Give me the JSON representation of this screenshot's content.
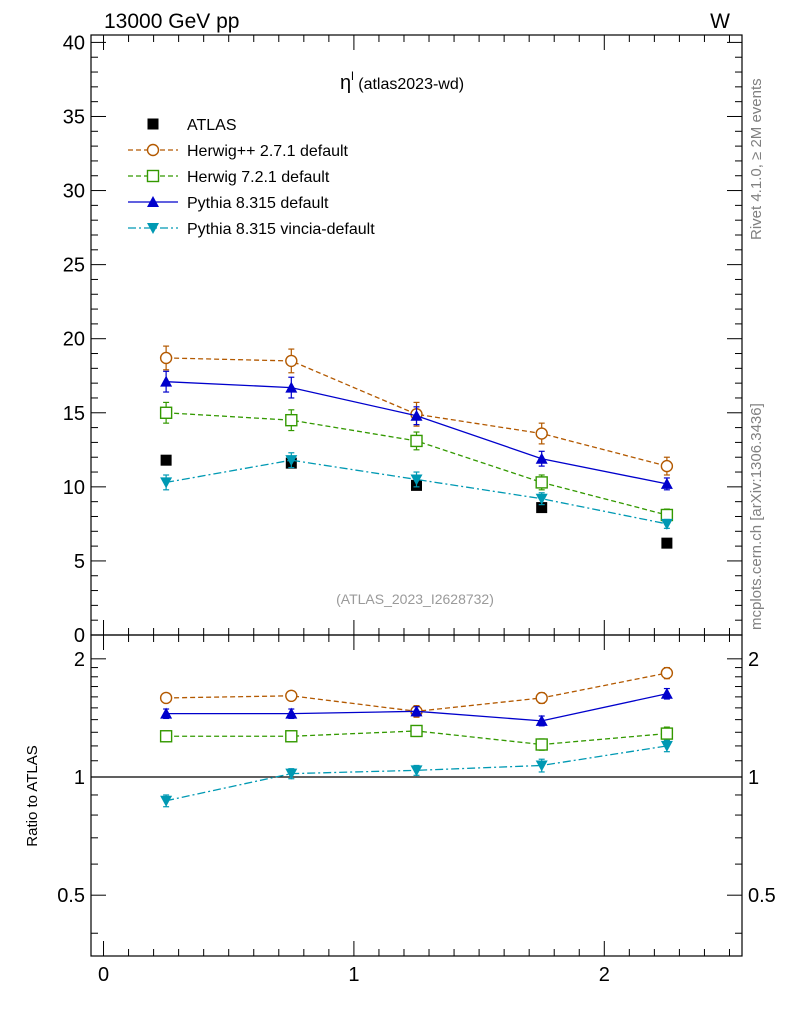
{
  "header": {
    "left": "13000 GeV pp",
    "right": "W"
  },
  "plot": {
    "title_symbol": "η",
    "title_sup": "l",
    "title_rest": " (atlas2023-wd)",
    "watermark": "(ATLAS_2023_I2628732)",
    "side_top": "Rivet 4.1.0, ≥ 2M events",
    "side_bottom": "mcplots.cern.ch [arXiv:1306.3436]",
    "ratio_ylabel": "Ratio to ATLAS"
  },
  "chart_data": [
    {
      "type": "line",
      "panel": "main",
      "title": "η^l (atlas2023-wd)",
      "xlim": [
        -0.05,
        2.55
      ],
      "ylim": [
        0,
        40.5
      ],
      "yticks": [
        0,
        5,
        10,
        15,
        20,
        25,
        30,
        35,
        40
      ],
      "ytick_labels": [
        "0",
        "5",
        "10",
        "15",
        "20",
        "25",
        "30",
        "35",
        "40"
      ],
      "x": [
        0.25,
        0.75,
        1.25,
        1.75,
        2.25
      ],
      "series": [
        {
          "name": "ATLAS",
          "color": "#000000",
          "marker": "square-filled",
          "line": "none",
          "values": [
            11.8,
            11.6,
            10.1,
            8.6,
            6.2
          ],
          "errors": [
            0,
            0,
            0,
            0,
            0
          ]
        },
        {
          "name": "Herwig++ 2.7.1 default",
          "color": "#b35900",
          "marker": "circle-open",
          "line": "dashed",
          "values": [
            18.7,
            18.5,
            14.9,
            13.6,
            11.4
          ],
          "errors": [
            0.8,
            0.8,
            0.8,
            0.7,
            0.6
          ]
        },
        {
          "name": "Herwig 7.2.1 default",
          "color": "#339900",
          "marker": "square-open",
          "line": "dashed",
          "values": [
            15.0,
            14.5,
            13.1,
            10.3,
            8.1
          ],
          "errors": [
            0.7,
            0.7,
            0.6,
            0.5,
            0.4
          ]
        },
        {
          "name": "Pythia 8.315 default",
          "color": "#0000cc",
          "marker": "triangle-up",
          "line": "solid",
          "values": [
            17.1,
            16.7,
            14.8,
            11.9,
            10.2
          ],
          "errors": [
            0.7,
            0.7,
            0.6,
            0.5,
            0.4
          ]
        },
        {
          "name": "Pythia 8.315 vincia-default",
          "color": "#0099b3",
          "marker": "triangle-down",
          "line": "dashdot",
          "values": [
            10.3,
            11.8,
            10.5,
            9.2,
            7.5
          ],
          "errors": [
            0.5,
            0.5,
            0.5,
            0.4,
            0.3
          ]
        }
      ]
    },
    {
      "type": "line",
      "panel": "ratio",
      "ylabel": "Ratio to ATLAS",
      "xlim": [
        -0.05,
        2.55
      ],
      "ylim": [
        0.35,
        2.3
      ],
      "yticks": [
        0.5,
        1,
        2
      ],
      "ytick_labels": [
        "0.5",
        "1",
        "2"
      ],
      "xticks": [
        0,
        1,
        2
      ],
      "xtick_labels": [
        "0",
        "1",
        "2"
      ],
      "reference": 1.0,
      "x": [
        0.25,
        0.75,
        1.25,
        1.75,
        2.25
      ],
      "series": [
        {
          "name": "Herwig++ 2.7.1 default",
          "color": "#b35900",
          "marker": "circle-open",
          "line": "dashed",
          "values": [
            1.59,
            1.61,
            1.47,
            1.59,
            1.84
          ],
          "errors": [
            0.04,
            0.04,
            0.05,
            0.05,
            0.06
          ]
        },
        {
          "name": "Herwig 7.2.1 default",
          "color": "#339900",
          "marker": "square-open",
          "line": "dashed",
          "values": [
            1.27,
            1.27,
            1.31,
            1.21,
            1.29
          ],
          "errors": [
            0.04,
            0.04,
            0.04,
            0.04,
            0.05
          ]
        },
        {
          "name": "Pythia 8.315 default",
          "color": "#0000cc",
          "marker": "triangle-up",
          "line": "solid",
          "values": [
            1.45,
            1.45,
            1.47,
            1.39,
            1.63
          ],
          "errors": [
            0.04,
            0.04,
            0.04,
            0.04,
            0.05
          ]
        },
        {
          "name": "Pythia 8.315 vincia-default",
          "color": "#0099b3",
          "marker": "triangle-down",
          "line": "dashdot",
          "values": [
            0.87,
            1.02,
            1.04,
            1.07,
            1.2
          ],
          "errors": [
            0.03,
            0.03,
            0.03,
            0.04,
            0.04
          ]
        }
      ]
    }
  ]
}
